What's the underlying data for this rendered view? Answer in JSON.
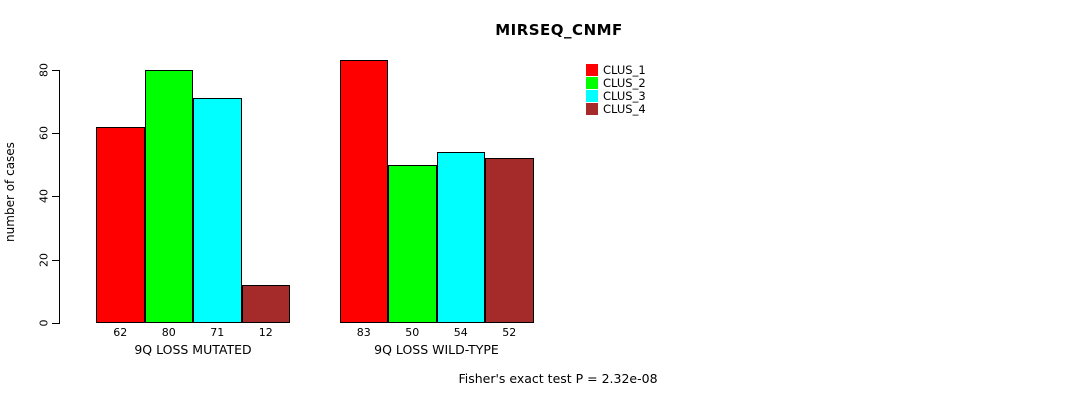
{
  "chart_data": {
    "type": "bar",
    "title": "MIRSEQ_CNMF",
    "ylabel": "number of cases",
    "categories": [
      "9Q LOSS MUTATED",
      "9Q LOSS WILD-TYPE"
    ],
    "series": [
      {
        "name": "CLUS_1",
        "color": "#ff0000",
        "values": [
          62,
          83
        ]
      },
      {
        "name": "CLUS_2",
        "color": "#00ff00",
        "values": [
          80,
          50
        ]
      },
      {
        "name": "CLUS_3",
        "color": "#00ffff",
        "values": [
          71,
          54
        ]
      },
      {
        "name": "CLUS_4",
        "color": "#a52a2a",
        "values": [
          12,
          52
        ]
      }
    ],
    "yticks": [
      0,
      20,
      40,
      60,
      80
    ],
    "ylim": [
      0,
      86
    ],
    "grid": false,
    "bar_value_labels": true,
    "legend_position": "top-right",
    "annotation": "Fisher's exact test P = 2.32e-08"
  }
}
